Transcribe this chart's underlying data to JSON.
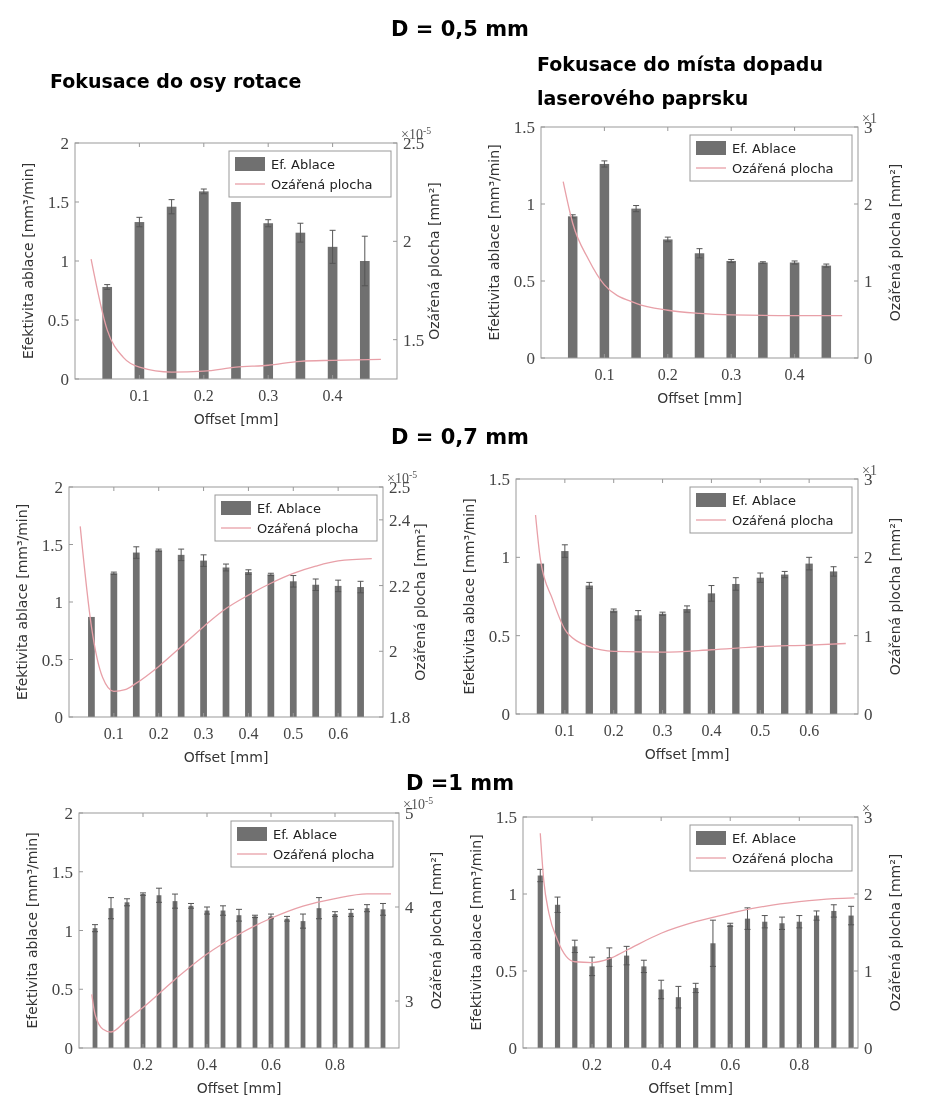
{
  "chart_data": [
    {
      "type": "bar",
      "title": "Fokusace do osy rotace",
      "xlabel": "Offset [mm]",
      "ylabel": "Efektivita ablace [mm³/min]",
      "y2label": "Ozářená plocha [mm²]",
      "annotations": [
        "D = 0,5 mm",
        "×10$^{-5}$"
      ],
      "xlim": [
        0,
        0.5
      ],
      "xticks": [
        0.1,
        0.2,
        0.3,
        0.4
      ],
      "ylim": [
        0,
        2
      ],
      "yticks": [
        0,
        0.5,
        1,
        1.5,
        2
      ],
      "y2lim": [
        1.3,
        2.5
      ],
      "y2ticks": [
        1.5,
        2,
        2.5
      ],
      "legend": "top right",
      "series": [
        {
          "name": "Ef. Ablace",
          "type": "bar",
          "color": "#707070",
          "x": [
            0.05,
            0.1,
            0.15,
            0.2,
            0.25,
            0.3,
            0.35,
            0.4,
            0.45
          ],
          "values": [
            0.78,
            1.33,
            1.46,
            1.59,
            1.5,
            1.32,
            1.24,
            1.12,
            1.0
          ],
          "errors": [
            0.02,
            0.04,
            0.06,
            0.02,
            null,
            0.03,
            0.08,
            0.14,
            0.21
          ]
        },
        {
          "name": "Ozářená plocha",
          "type": "line",
          "axis": "y2",
          "color": "#e8a0a8",
          "x": [
            0.025,
            0.05,
            0.075,
            0.1,
            0.15,
            0.2,
            0.25,
            0.3,
            0.35,
            0.4,
            0.475
          ],
          "values": [
            1.91,
            1.55,
            1.41,
            1.36,
            1.335,
            1.34,
            1.36,
            1.37,
            1.39,
            1.395,
            1.4
          ]
        }
      ]
    },
    {
      "type": "bar",
      "title": "Fokusace do místa dopadu laserového paprsku",
      "xlabel": "Offset [mm]",
      "ylabel": "Efektivita ablace [mm³/min]",
      "y2label": "Ozářená plocha [mm²]",
      "annotations": [
        "×1"
      ],
      "xlim": [
        0,
        0.5
      ],
      "xticks": [
        0.1,
        0.2,
        0.3,
        0.4
      ],
      "ylim": [
        0,
        1.5
      ],
      "yticks": [
        0,
        0.5,
        1,
        1.5
      ],
      "y2lim": [
        0,
        3
      ],
      "y2ticks": [
        0,
        1,
        2,
        3
      ],
      "legend": "top right",
      "series": [
        {
          "name": "Ef. Ablace",
          "type": "bar",
          "color": "#707070",
          "x": [
            0.05,
            0.1,
            0.15,
            0.2,
            0.25,
            0.3,
            0.35,
            0.4,
            0.45
          ],
          "values": [
            0.92,
            1.26,
            0.97,
            0.77,
            0.68,
            0.63,
            0.62,
            0.62,
            0.6
          ],
          "errors": [
            0.01,
            0.02,
            0.02,
            0.015,
            0.03,
            0.01,
            0.005,
            0.01,
            0.01
          ]
        },
        {
          "name": "Ozářená plocha",
          "type": "line",
          "axis": "y2",
          "color": "#e8a0a8",
          "x": [
            0.035,
            0.05,
            0.075,
            0.1,
            0.15,
            0.2,
            0.25,
            0.3,
            0.4,
            0.475
          ],
          "values": [
            2.29,
            1.75,
            1.28,
            0.95,
            0.71,
            0.62,
            0.58,
            0.56,
            0.55,
            0.55
          ]
        }
      ]
    },
    {
      "type": "bar",
      "xlabel": "Offset [mm]",
      "ylabel": "Efektivita ablace [mm³/min]",
      "y2label": "Ozářená plocha [mm²]",
      "annotations": [
        "D = 0,7 mm",
        "×10$^{-5}$"
      ],
      "xlim": [
        0,
        0.7
      ],
      "xticks": [
        0.1,
        0.2,
        0.3,
        0.4,
        0.5,
        0.6
      ],
      "ylim": [
        0,
        2
      ],
      "yticks": [
        0,
        0.5,
        1,
        1.5,
        2
      ],
      "y2lim": [
        1.8,
        2.5
      ],
      "y2ticks": [
        1.8,
        2,
        2.2,
        2.4,
        2.5
      ],
      "legend": "top right",
      "series": [
        {
          "name": "Ef. Ablace",
          "type": "bar",
          "color": "#707070",
          "x": [
            0.05,
            0.1,
            0.15,
            0.2,
            0.25,
            0.3,
            0.35,
            0.4,
            0.45,
            0.5,
            0.55,
            0.6,
            0.65
          ],
          "values": [
            0.87,
            1.25,
            1.43,
            1.45,
            1.41,
            1.36,
            1.3,
            1.26,
            1.24,
            1.18,
            1.15,
            1.14,
            1.13
          ],
          "errors": [
            null,
            0.01,
            0.05,
            0.01,
            0.05,
            0.05,
            0.03,
            0.02,
            0.01,
            0.05,
            0.05,
            0.05,
            0.05
          ]
        },
        {
          "name": "Ozářená plocha",
          "type": "line",
          "axis": "y2",
          "color": "#e8a0a8",
          "x": [
            0.025,
            0.05,
            0.075,
            0.1,
            0.125,
            0.15,
            0.2,
            0.25,
            0.3,
            0.35,
            0.4,
            0.45,
            0.5,
            0.55,
            0.6,
            0.675
          ],
          "values": [
            2.38,
            2.075,
            1.92,
            1.878,
            1.883,
            1.903,
            1.954,
            2.014,
            2.075,
            2.13,
            2.171,
            2.207,
            2.237,
            2.259,
            2.275,
            2.282
          ]
        }
      ]
    },
    {
      "type": "bar",
      "xlabel": "Offset [mm]",
      "ylabel": "Efektivita ablace [mm³/min]",
      "y2label": "Ozářená plocha [mm²]",
      "annotations": [
        "×1"
      ],
      "xlim": [
        0,
        0.7
      ],
      "xticks": [
        0.1,
        0.2,
        0.3,
        0.4,
        0.5,
        0.6
      ],
      "ylim": [
        0,
        1.5
      ],
      "yticks": [
        0,
        0.5,
        1,
        1.5
      ],
      "y2lim": [
        0,
        3
      ],
      "y2ticks": [
        0,
        1,
        2,
        3
      ],
      "legend": "top right",
      "series": [
        {
          "name": "Ef. Ablace",
          "type": "bar",
          "color": "#707070",
          "x": [
            0.05,
            0.1,
            0.15,
            0.2,
            0.25,
            0.3,
            0.35,
            0.4,
            0.45,
            0.5,
            0.55,
            0.6,
            0.65
          ],
          "values": [
            0.96,
            1.04,
            0.82,
            0.66,
            0.63,
            0.64,
            0.67,
            0.77,
            0.83,
            0.87,
            0.89,
            0.96,
            0.91
          ],
          "errors": [
            null,
            0.04,
            0.02,
            0.01,
            0.03,
            0.01,
            0.02,
            0.05,
            0.04,
            0.03,
            0.02,
            0.04,
            0.03
          ]
        },
        {
          "name": "Ozářená plocha",
          "type": "line",
          "axis": "y2",
          "color": "#e8a0a8",
          "x": [
            0.04,
            0.05,
            0.075,
            0.1,
            0.125,
            0.15,
            0.2,
            0.3,
            0.4,
            0.5,
            0.6,
            0.675
          ],
          "values": [
            2.54,
            1.97,
            1.46,
            1.08,
            0.93,
            0.86,
            0.8,
            0.79,
            0.82,
            0.86,
            0.88,
            0.9
          ]
        }
      ]
    },
    {
      "type": "bar",
      "xlabel": "Offset [mm]",
      "ylabel": "Efektivita ablace [mm³/min]",
      "y2label": "Ozářená plocha [mm²]",
      "annotations": [
        "D =1 mm",
        "×10$^{-5}$"
      ],
      "xlim": [
        0,
        1
      ],
      "xticks": [
        0.2,
        0.4,
        0.6,
        0.8
      ],
      "ylim": [
        0,
        2
      ],
      "yticks": [
        0,
        0.5,
        1,
        1.5,
        2
      ],
      "y2lim": [
        2.5,
        5
      ],
      "y2ticks": [
        3,
        4,
        5
      ],
      "legend": "top right",
      "series": [
        {
          "name": "Ef. Ablace",
          "type": "bar",
          "color": "#707070",
          "x": [
            0.05,
            0.1,
            0.15,
            0.2,
            0.25,
            0.3,
            0.35,
            0.4,
            0.45,
            0.5,
            0.55,
            0.6,
            0.65,
            0.7,
            0.75,
            0.8,
            0.85,
            0.9,
            0.95
          ],
          "values": [
            1.02,
            1.19,
            1.24,
            1.31,
            1.3,
            1.25,
            1.21,
            1.17,
            1.17,
            1.13,
            1.12,
            1.12,
            1.1,
            1.08,
            1.19,
            1.14,
            1.15,
            1.19,
            1.18
          ],
          "errors": [
            0.03,
            0.09,
            0.03,
            0.01,
            0.06,
            0.06,
            0.02,
            0.03,
            0.04,
            0.05,
            0.01,
            0.02,
            0.02,
            0.06,
            0.09,
            0.02,
            0.03,
            0.03,
            0.05
          ]
        },
        {
          "name": "Ozářená plocha",
          "type": "line",
          "axis": "y2",
          "color": "#e8a0a8",
          "x": [
            0.04,
            0.05,
            0.075,
            0.1,
            0.15,
            0.2,
            0.3,
            0.4,
            0.5,
            0.6,
            0.7,
            0.8,
            0.9,
            0.975
          ],
          "values": [
            3.07,
            2.86,
            2.7,
            2.67,
            2.8,
            2.93,
            3.23,
            3.5,
            3.71,
            3.88,
            4.01,
            4.09,
            4.14,
            4.14
          ]
        }
      ]
    },
    {
      "type": "bar",
      "xlabel": "Offset [mm]",
      "ylabel": "Efektivita ablace [mm³/min]",
      "y2label": "Ozářená plocha [mm²]",
      "annotations": [
        "×"
      ],
      "xlim": [
        0,
        0.97
      ],
      "xticks": [
        0.2,
        0.4,
        0.6,
        0.8
      ],
      "ylim": [
        0,
        1.5
      ],
      "yticks": [
        0,
        0.5,
        1,
        1.5
      ],
      "y2lim": [
        0,
        3
      ],
      "y2ticks": [
        0,
        1,
        2,
        3
      ],
      "legend": "top right",
      "series": [
        {
          "name": "Ef. Ablace",
          "type": "bar",
          "color": "#707070",
          "x": [
            0.05,
            0.1,
            0.15,
            0.2,
            0.25,
            0.3,
            0.35,
            0.4,
            0.45,
            0.5,
            0.55,
            0.6,
            0.65,
            0.7,
            0.75,
            0.8,
            0.85,
            0.9,
            0.95
          ],
          "values": [
            1.12,
            0.93,
            0.66,
            0.53,
            0.59,
            0.6,
            0.53,
            0.38,
            0.33,
            0.39,
            0.68,
            0.8,
            0.84,
            0.82,
            0.81,
            0.82,
            0.86,
            0.89,
            0.86
          ],
          "errors": [
            0.04,
            0.05,
            0.04,
            0.06,
            0.06,
            0.06,
            0.04,
            0.06,
            0.07,
            0.03,
            0.15,
            0.01,
            0.07,
            0.04,
            0.04,
            0.04,
            0.03,
            0.04,
            0.06
          ]
        },
        {
          "name": "Ozářená plocha",
          "type": "line",
          "axis": "y2",
          "color": "#e8a0a8",
          "x": [
            0.05,
            0.06,
            0.075,
            0.1,
            0.125,
            0.15,
            0.2,
            0.25,
            0.3,
            0.4,
            0.5,
            0.6,
            0.7,
            0.8,
            0.9,
            0.96
          ],
          "values": [
            2.79,
            2.18,
            1.75,
            1.4,
            1.19,
            1.12,
            1.11,
            1.16,
            1.27,
            1.49,
            1.64,
            1.75,
            1.84,
            1.9,
            1.94,
            1.95
          ]
        }
      ]
    }
  ]
}
